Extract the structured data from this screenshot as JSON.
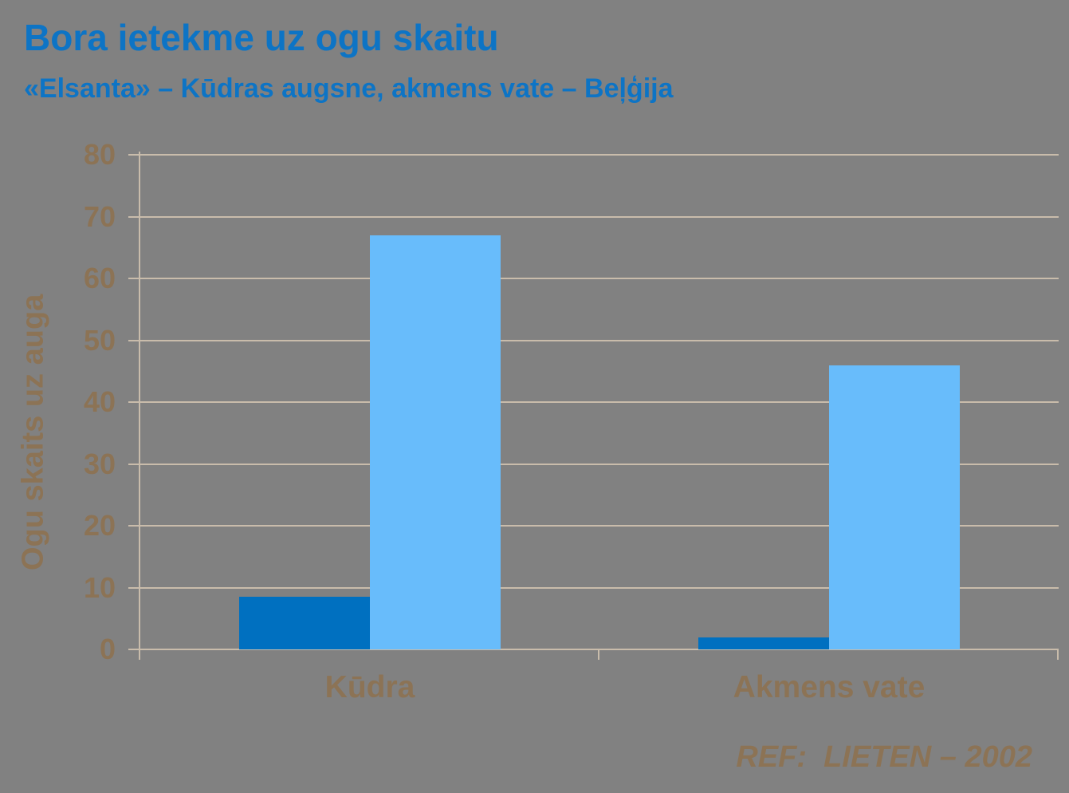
{
  "slide": {
    "title": "Bora ietekme uz ogu skaitu",
    "subtitle": "«Elsanta» – Kūdras augsne, akmens vate – Beļģija",
    "reference": "REF:  LIETEN – 2002"
  },
  "colors": {
    "background": "#818181",
    "heading_blue": "#0d74c5",
    "text_brown": "#8c7355",
    "axis_tan": "#c9bcab",
    "bar_dark_blue": "#0070c0",
    "bar_light_blue": "#68bcfb"
  },
  "chart_data": {
    "type": "bar",
    "title": "Bora ietekme uz ogu skaitu",
    "subtitle": "«Elsanta» – Kūdras augsne, akmens vate – Beļģija",
    "categories": [
      "Kūdra",
      "Akmens vate"
    ],
    "series": [
      {
        "color": "#0070c0",
        "values": [
          8.5,
          2
        ]
      },
      {
        "color": "#68bcfb",
        "values": [
          67,
          46
        ]
      }
    ],
    "xlabel": "",
    "ylabel": "Ogu skaits uz auga",
    "ylim": [
      0,
      80
    ],
    "yticks": [
      0,
      10,
      20,
      30,
      40,
      50,
      60,
      70,
      80
    ],
    "grid": true,
    "legend": "none",
    "annotation": "REF:  LIETEN – 2002"
  }
}
